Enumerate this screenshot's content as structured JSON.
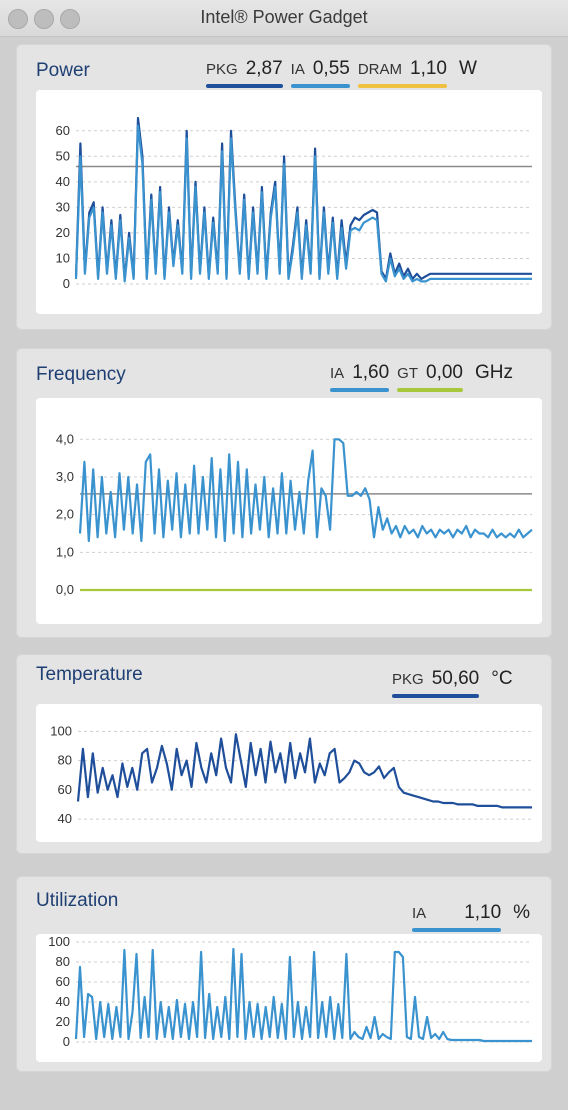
{
  "window": {
    "title": "Intel® Power Gadget",
    "buttons": [
      "close",
      "minimize",
      "zoom"
    ]
  },
  "colors": {
    "pkg": "#1f4f9a",
    "ia": "#3a93cf",
    "dram": "#f0c040",
    "gt": "#a8c83c",
    "limit_line": "#8a8a8a",
    "title_text": "#1f3f73"
  },
  "panels": {
    "power": {
      "title": "Power",
      "unit": "W",
      "readouts": [
        {
          "label": "PKG",
          "value": "2,87",
          "color": "#1f4f9a"
        },
        {
          "label": "IA",
          "value": "0,55",
          "color": "#3a93cf"
        },
        {
          "label": "DRAM",
          "value": "1,10",
          "color": "#f0c040"
        }
      ]
    },
    "frequency": {
      "title": "Frequency",
      "unit": "GHz",
      "readouts": [
        {
          "label": "IA",
          "value": "1,60",
          "color": "#3a93cf"
        },
        {
          "label": "GT",
          "value": "0,00",
          "color": "#a8c83c"
        }
      ]
    },
    "temperature": {
      "title": "Temperature",
      "unit": "°C",
      "readouts": [
        {
          "label": "PKG",
          "value": "50,60",
          "color": "#1f4f9a"
        }
      ]
    },
    "utilization": {
      "title": "Utilization",
      "unit": "%",
      "readouts": [
        {
          "label": "IA",
          "value": "1,10",
          "color": "#3a93cf"
        }
      ]
    }
  },
  "chart_data": [
    {
      "type": "line",
      "title": "Power",
      "ylim": [
        0,
        65
      ],
      "yticks": [
        "0",
        "10",
        "20",
        "30",
        "40",
        "50",
        "60"
      ],
      "ytick_values": [
        0,
        10,
        20,
        30,
        40,
        50,
        60
      ],
      "reference_lines": [
        {
          "value": 46,
          "color": "#8a8a8a"
        }
      ],
      "grid": true,
      "series": [
        {
          "name": "PKG",
          "color": "#1f4f9a",
          "values": [
            3,
            55,
            5,
            28,
            32,
            3,
            30,
            5,
            25,
            3,
            27,
            2,
            20,
            3,
            65,
            50,
            3,
            35,
            5,
            38,
            3,
            30,
            8,
            25,
            5,
            60,
            3,
            40,
            5,
            30,
            3,
            26,
            5,
            55,
            3,
            60,
            30,
            5,
            35,
            3,
            30,
            5,
            38,
            3,
            28,
            40,
            5,
            50,
            3,
            15,
            30,
            3,
            25,
            5,
            53,
            3,
            30,
            5,
            26,
            3,
            25,
            8,
            23,
            26,
            25,
            27,
            28,
            29,
            28,
            5,
            2,
            12,
            4,
            8,
            3,
            6,
            2,
            4,
            2,
            3,
            4,
            4,
            4,
            4,
            4,
            4,
            4,
            4,
            4,
            4,
            4,
            4,
            4,
            4,
            4,
            4,
            4,
            4,
            4,
            4,
            4,
            4,
            4,
            4
          ]
        },
        {
          "name": "IA",
          "color": "#3a93cf",
          "values": [
            2,
            50,
            4,
            26,
            30,
            2,
            28,
            4,
            23,
            2,
            25,
            1,
            18,
            2,
            62,
            47,
            2,
            33,
            4,
            36,
            2,
            28,
            7,
            23,
            4,
            57,
            2,
            38,
            4,
            28,
            2,
            24,
            4,
            52,
            2,
            57,
            28,
            4,
            33,
            2,
            28,
            4,
            36,
            2,
            26,
            38,
            4,
            47,
            2,
            13,
            28,
            2,
            23,
            4,
            50,
            2,
            28,
            4,
            24,
            2,
            22,
            6,
            21,
            22,
            21,
            24,
            25,
            26,
            25,
            4,
            1,
            10,
            3,
            6,
            2,
            4,
            1,
            2,
            1,
            1,
            2,
            2,
            2,
            2,
            2,
            2,
            2,
            2,
            2,
            2,
            2,
            2,
            2,
            2,
            2,
            2,
            2,
            2,
            2,
            2,
            2,
            2,
            2,
            2
          ]
        }
      ]
    },
    {
      "type": "line",
      "title": "Frequency",
      "ylim": [
        0,
        4.3
      ],
      "yticks": [
        "0,0",
        "1,0",
        "2,0",
        "3,0",
        "4,0"
      ],
      "ytick_values": [
        0,
        1,
        2,
        3,
        4
      ],
      "reference_lines": [
        {
          "value": 2.55,
          "color": "#8a8a8a"
        }
      ],
      "grid": true,
      "series": [
        {
          "name": "IA",
          "color": "#3a93cf",
          "values": [
            1.5,
            3.4,
            1.3,
            3.2,
            1.4,
            3.0,
            1.5,
            2.6,
            1.4,
            3.1,
            1.6,
            3.0,
            1.5,
            2.8,
            1.3,
            3.4,
            3.6,
            1.5,
            3.2,
            1.4,
            2.9,
            1.6,
            3.1,
            1.4,
            2.8,
            1.5,
            3.3,
            1.5,
            3.0,
            1.6,
            3.5,
            1.4,
            3.2,
            1.3,
            3.6,
            1.5,
            3.4,
            1.4,
            3.2,
            1.5,
            2.8,
            1.6,
            3.0,
            1.4,
            2.7,
            1.5,
            3.1,
            1.5,
            2.9,
            1.6,
            2.6,
            1.5,
            2.9,
            3.7,
            1.4,
            2.7,
            2.5,
            1.6,
            4.0,
            4.0,
            3.9,
            2.5,
            2.5,
            2.6,
            2.5,
            2.7,
            2.4,
            1.4,
            2.2,
            1.6,
            1.9,
            1.5,
            1.7,
            1.4,
            1.7,
            1.5,
            1.6,
            1.4,
            1.7,
            1.5,
            1.6,
            1.4,
            1.6,
            1.5,
            1.6,
            1.4,
            1.6,
            1.5,
            1.7,
            1.4,
            1.6,
            1.5,
            1.5,
            1.4,
            1.6,
            1.4,
            1.5,
            1.4,
            1.5,
            1.4,
            1.6,
            1.4,
            1.5,
            1.6
          ]
        },
        {
          "name": "GT",
          "color": "#a8c83c",
          "values": [
            0,
            0,
            0,
            0,
            0,
            0,
            0,
            0,
            0,
            0,
            0,
            0,
            0,
            0,
            0,
            0,
            0,
            0,
            0,
            0,
            0,
            0,
            0,
            0,
            0,
            0,
            0,
            0,
            0,
            0,
            0,
            0,
            0,
            0,
            0,
            0,
            0,
            0,
            0,
            0,
            0,
            0,
            0,
            0,
            0,
            0,
            0,
            0,
            0,
            0,
            0,
            0,
            0,
            0,
            0,
            0,
            0,
            0,
            0,
            0,
            0,
            0,
            0,
            0,
            0,
            0,
            0,
            0,
            0,
            0,
            0,
            0,
            0,
            0,
            0,
            0,
            0,
            0,
            0,
            0,
            0,
            0,
            0,
            0,
            0,
            0,
            0,
            0,
            0,
            0,
            0,
            0,
            0,
            0,
            0,
            0,
            0,
            0,
            0,
            0,
            0,
            0,
            0,
            0
          ]
        }
      ]
    },
    {
      "type": "line",
      "title": "Temperature",
      "ylim": [
        38,
        105
      ],
      "yticks": [
        "40",
        "60",
        "80",
        "100"
      ],
      "ytick_values": [
        40,
        60,
        80,
        100
      ],
      "reference_lines": [],
      "grid": true,
      "series": [
        {
          "name": "PKG",
          "color": "#1f4f9a",
          "values": [
            52,
            88,
            55,
            85,
            58,
            75,
            60,
            70,
            55,
            78,
            62,
            75,
            60,
            85,
            88,
            65,
            75,
            90,
            78,
            60,
            88,
            70,
            80,
            62,
            92,
            75,
            65,
            85,
            70,
            95,
            75,
            65,
            98,
            80,
            62,
            92,
            70,
            88,
            65,
            93,
            72,
            85,
            65,
            92,
            68,
            85,
            72,
            95,
            65,
            78,
            70,
            85,
            88,
            65,
            68,
            72,
            80,
            78,
            72,
            70,
            72,
            76,
            68,
            72,
            75,
            62,
            58,
            57,
            56,
            55,
            54,
            53,
            52,
            52,
            51,
            51,
            51,
            50,
            50,
            50,
            50,
            49,
            49,
            49,
            49,
            49,
            48,
            48,
            48,
            48,
            48,
            48,
            48
          ]
        }
      ]
    },
    {
      "type": "line",
      "title": "Utilization",
      "ylim": [
        0,
        100
      ],
      "yticks": [
        "0",
        "20",
        "40",
        "60",
        "80",
        "100"
      ],
      "ytick_values": [
        0,
        20,
        40,
        60,
        80,
        100
      ],
      "reference_lines": [],
      "grid": true,
      "series": [
        {
          "name": "IA",
          "color": "#3a93cf",
          "values": [
            3,
            75,
            5,
            48,
            45,
            3,
            40,
            5,
            38,
            3,
            35,
            5,
            92,
            3,
            30,
            88,
            4,
            45,
            5,
            92,
            3,
            40,
            5,
            35,
            3,
            42,
            5,
            38,
            3,
            40,
            5,
            90,
            4,
            48,
            3,
            35,
            5,
            45,
            3,
            93,
            5,
            88,
            3,
            40,
            5,
            38,
            3,
            35,
            5,
            45,
            4,
            38,
            3,
            85,
            5,
            40,
            3,
            35,
            5,
            90,
            4,
            40,
            5,
            45,
            3,
            38,
            4,
            88,
            3,
            10,
            5,
            3,
            15,
            4,
            25,
            3,
            8,
            5,
            3,
            90,
            90,
            85,
            5,
            3,
            45,
            5,
            3,
            25,
            4,
            8,
            3,
            10,
            3,
            2,
            2,
            2,
            2,
            2,
            2,
            2,
            2,
            1,
            1,
            1,
            1,
            1,
            1,
            1,
            1,
            1,
            1,
            1,
            1,
            1
          ]
        }
      ]
    }
  ]
}
